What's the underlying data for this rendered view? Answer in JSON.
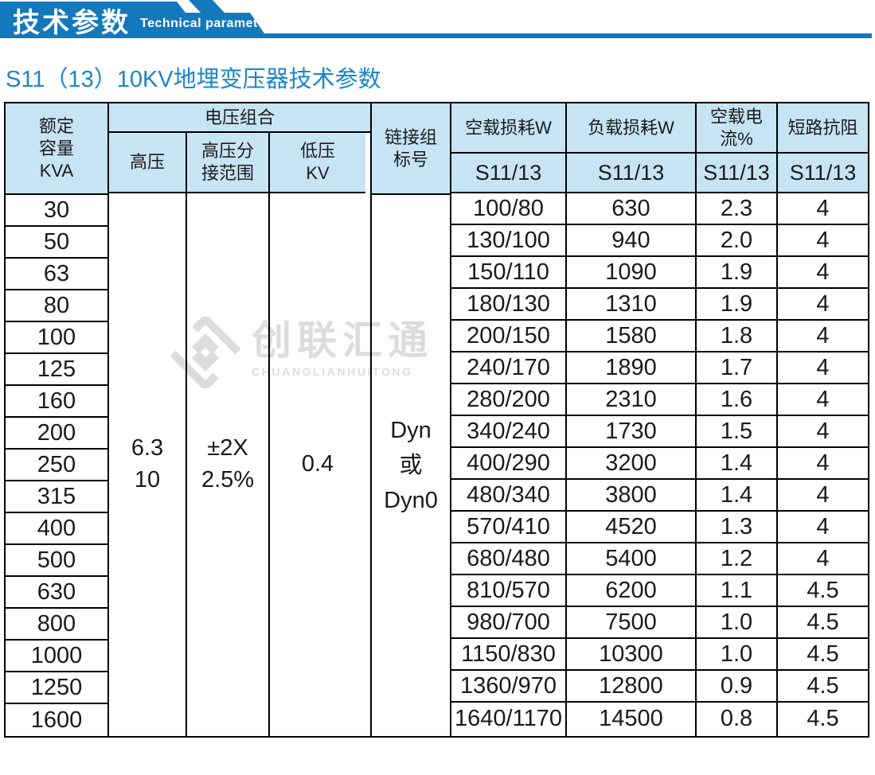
{
  "colors": {
    "banner_blue": "#1478bd",
    "title_blue": "#1b86c8",
    "table_header_bg": "#c7e4f5",
    "border_black": "#000000",
    "watermark_gray": "#dcdcdc"
  },
  "banner": {
    "title_cn": "技术参数",
    "title_en": "Technical parameter"
  },
  "page_title": "S11（13）10KV地埋变压器技术参数",
  "watermark": {
    "cn": "创联汇通",
    "en": "CHUANGLIANHUITONG"
  },
  "table": {
    "header": {
      "capacity_lines": [
        "额定",
        "容量",
        "KVA"
      ],
      "voltage_group": "电压组合",
      "hv": "高压",
      "hv_tap_lines": [
        "高压分",
        "接范围"
      ],
      "lv_lines": [
        "低压",
        "KV"
      ],
      "conn_lines": [
        "链接组",
        "标号"
      ],
      "no_load_loss": "空载损耗W",
      "load_loss": "负载损耗W",
      "no_load_current": "空载电流%",
      "impedance": "短路抗阻",
      "series": "S11/13"
    },
    "merged": {
      "hv_lines": [
        "6.3",
        "10"
      ],
      "tap_lines": [
        "±2X",
        "2.5%"
      ],
      "lv": "0.4",
      "conn_lines": [
        "Dyn",
        "或",
        "Dyn0"
      ]
    },
    "rows": [
      {
        "kva": "30",
        "no_load": "100/80",
        "load": "630",
        "current": "2.3",
        "impedance": "4"
      },
      {
        "kva": "50",
        "no_load": "130/100",
        "load": "940",
        "current": "2.0",
        "impedance": "4"
      },
      {
        "kva": "63",
        "no_load": "150/110",
        "load": "1090",
        "current": "1.9",
        "impedance": "4"
      },
      {
        "kva": "80",
        "no_load": "180/130",
        "load": "1310",
        "current": "1.9",
        "impedance": "4"
      },
      {
        "kva": "100",
        "no_load": "200/150",
        "load": "1580",
        "current": "1.8",
        "impedance": "4"
      },
      {
        "kva": "125",
        "no_load": "240/170",
        "load": "1890",
        "current": "1.7",
        "impedance": "4"
      },
      {
        "kva": "160",
        "no_load": "280/200",
        "load": "2310",
        "current": "1.6",
        "impedance": "4"
      },
      {
        "kva": "200",
        "no_load": "340/240",
        "load": "1730",
        "current": "1.5",
        "impedance": "4"
      },
      {
        "kva": "250",
        "no_load": "400/290",
        "load": "3200",
        "current": "1.4",
        "impedance": "4"
      },
      {
        "kva": "315",
        "no_load": "480/340",
        "load": "3800",
        "current": "1.4",
        "impedance": "4"
      },
      {
        "kva": "400",
        "no_load": "570/410",
        "load": "4520",
        "current": "1.3",
        "impedance": "4"
      },
      {
        "kva": "500",
        "no_load": "680/480",
        "load": "5400",
        "current": "1.2",
        "impedance": "4"
      },
      {
        "kva": "630",
        "no_load": "810/570",
        "load": "6200",
        "current": "1.1",
        "impedance": "4.5"
      },
      {
        "kva": "800",
        "no_load": "980/700",
        "load": "7500",
        "current": "1.0",
        "impedance": "4.5"
      },
      {
        "kva": "1000",
        "no_load": "1150/830",
        "load": "10300",
        "current": "1.0",
        "impedance": "4.5"
      },
      {
        "kva": "1250",
        "no_load": "1360/970",
        "load": "12800",
        "current": "0.9",
        "impedance": "4.5"
      },
      {
        "kva": "1600",
        "no_load": "1640/1170",
        "load": "14500",
        "current": "0.8",
        "impedance": "4.5"
      }
    ]
  }
}
